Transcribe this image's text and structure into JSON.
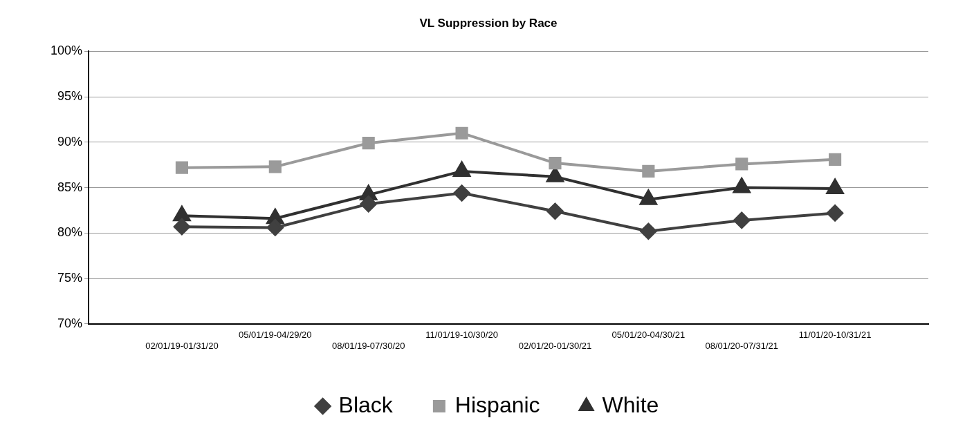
{
  "chart_data": {
    "type": "line",
    "title": "VL Suppression by Race",
    "categories": [
      null,
      "02/01/19-01/31/20",
      "05/01/19-04/29/20",
      "08/01/19-07/30/20",
      "11/01/19-10/30/20",
      "02/01/20-01/30/21",
      "05/01/20-04/30/21",
      "08/01/20-07/31/21",
      "11/01/20-10/31/21",
      null
    ],
    "series": [
      {
        "name": "Black",
        "color": "#404040",
        "marker": "diamond",
        "values": [
          null,
          80.7,
          80.6,
          83.2,
          84.4,
          82.4,
          80.2,
          81.4,
          82.2,
          null
        ]
      },
      {
        "name": "Hispanic",
        "color": "#9a9a9a",
        "marker": "square",
        "values": [
          null,
          87.2,
          87.3,
          89.9,
          91.0,
          87.7,
          86.8,
          87.6,
          88.1,
          null
        ]
      },
      {
        "name": "White",
        "color": "#303030",
        "marker": "triangle",
        "values": [
          null,
          81.9,
          81.6,
          84.2,
          86.8,
          86.2,
          83.7,
          85.0,
          84.9,
          null
        ]
      }
    ],
    "ylim": [
      70,
      100
    ],
    "yticks": [
      {
        "value": 70,
        "label": "70%"
      },
      {
        "value": 75,
        "label": "75%"
      },
      {
        "value": 80,
        "label": "80%"
      },
      {
        "value": 85,
        "label": "85%"
      },
      {
        "value": 90,
        "label": "90%"
      },
      {
        "value": 95,
        "label": "95%"
      },
      {
        "value": 100,
        "label": "100%"
      }
    ],
    "grid": "y",
    "legend": "bottom",
    "line_style": "solid"
  }
}
